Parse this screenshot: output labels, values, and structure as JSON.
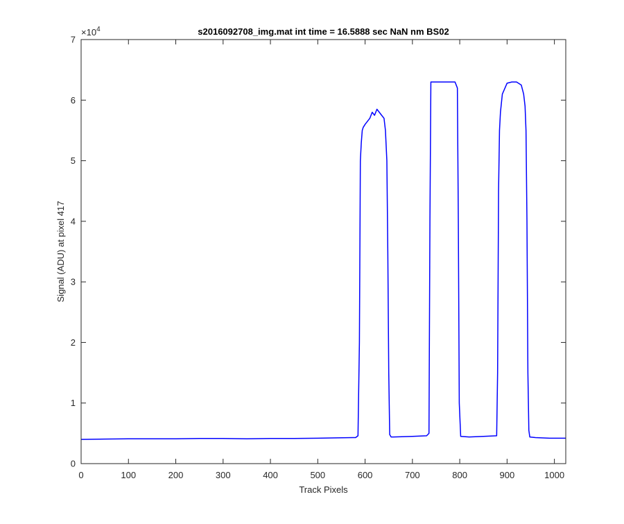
{
  "chart_data": {
    "type": "line",
    "title": "s2016092708_img.mat int time = 16.5888 sec  NaN nm BS02",
    "xlabel": "Track Pixels",
    "ylabel": "Signal (ADU) at pixel 417",
    "xlim": [
      0,
      1024
    ],
    "ylim": [
      0,
      70000
    ],
    "x_ticks": [
      0,
      100,
      200,
      300,
      400,
      500,
      600,
      700,
      800,
      900,
      1000
    ],
    "x_tick_labels": [
      "0",
      "100",
      "200",
      "300",
      "400",
      "500",
      "600",
      "700",
      "800",
      "900",
      "1000"
    ],
    "y_ticks": [
      0,
      10000,
      20000,
      30000,
      40000,
      50000,
      60000,
      70000
    ],
    "y_tick_labels": [
      "0",
      "1",
      "2",
      "3",
      "4",
      "5",
      "6",
      "7"
    ],
    "y_exponent_base": "×10",
    "y_exponent_power": "4",
    "grid": false,
    "line_color": "#0000ff",
    "series": [
      {
        "x": [
          0,
          50,
          100,
          150,
          200,
          250,
          300,
          350,
          400,
          450,
          500,
          540,
          580,
          585,
          588,
          590,
          592,
          594,
          596,
          600,
          605,
          610,
          615,
          620,
          625,
          630,
          635,
          640,
          643,
          646,
          648,
          650,
          652,
          655,
          660,
          700,
          730,
          735,
          737,
          739,
          750,
          770,
          790,
          795,
          797,
          799,
          802,
          820,
          850,
          878,
          880,
          882,
          884,
          886,
          890,
          900,
          910,
          920,
          930,
          935,
          938,
          940,
          942,
          944,
          946,
          948,
          960,
          990,
          1024
        ],
        "y": [
          4000,
          4050,
          4100,
          4100,
          4100,
          4150,
          4150,
          4100,
          4150,
          4150,
          4200,
          4250,
          4300,
          4600,
          20000,
          50000,
          53000,
          55000,
          55500,
          56000,
          56500,
          57000,
          58000,
          57500,
          58500,
          58000,
          57500,
          57000,
          55000,
          50000,
          35000,
          15000,
          4800,
          4400,
          4400,
          4500,
          4600,
          5000,
          40000,
          63000,
          63000,
          63000,
          63000,
          62000,
          40000,
          10000,
          4500,
          4400,
          4500,
          4600,
          15000,
          45000,
          55000,
          58000,
          61000,
          62800,
          63000,
          63000,
          62500,
          61000,
          59000,
          55000,
          40000,
          15000,
          5500,
          4400,
          4300,
          4200,
          4200
        ]
      }
    ]
  }
}
